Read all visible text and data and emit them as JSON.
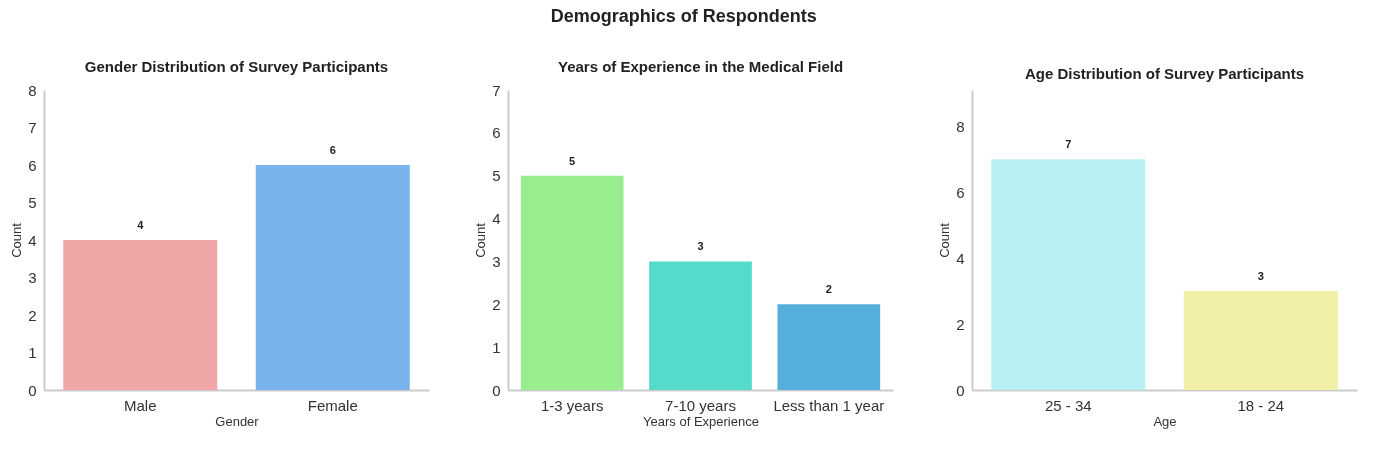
{
  "chart_data": [
    {
      "type": "bar",
      "annotations": [
        "Demographics of Respondents"
      ],
      "title": "Gender Distribution of Survey Participants",
      "xlabel": "Gender",
      "ylabel": "Count",
      "categories": [
        "Male",
        "Female"
      ],
      "values": [
        4,
        6
      ],
      "colors": [
        "#f0a6a6",
        "#7ab2ec"
      ],
      "ylim": [
        0,
        8
      ],
      "yticks": [
        0,
        1,
        2,
        3,
        4,
        5,
        6,
        7,
        8
      ],
      "grid": false,
      "legend": false,
      "data_labels": true
    },
    {
      "type": "bar",
      "title": "Years of Experience in the Medical Field",
      "xlabel": "Years of Experience",
      "ylabel": "Count",
      "categories": [
        "1-3 years",
        "7-10 years",
        "Less than 1 year"
      ],
      "values": [
        5,
        3,
        2
      ],
      "colors": [
        "#98ee8f",
        "#55dbca",
        "#55aedc"
      ],
      "ylim": [
        0,
        7
      ],
      "yticks": [
        0,
        1,
        2,
        3,
        4,
        5,
        6,
        7
      ],
      "grid": false,
      "legend": false,
      "data_labels": true
    },
    {
      "type": "bar",
      "title": "Age Distribution of Survey Participants",
      "xlabel": "Age",
      "ylabel": "Count",
      "categories": [
        "25 - 34",
        "18 - 24"
      ],
      "values": [
        7,
        3
      ],
      "colors": [
        "#b9f0f2",
        "#f1efa5"
      ],
      "ylim": [
        0,
        9.1
      ],
      "yticks": [
        0,
        2,
        4,
        6,
        8
      ],
      "grid": false,
      "legend": false,
      "data_labels": true
    }
  ]
}
